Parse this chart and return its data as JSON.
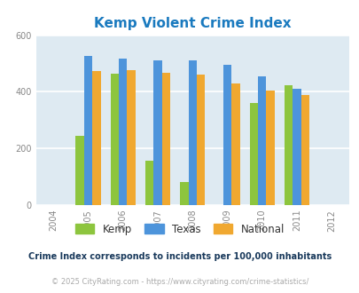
{
  "title": "Kemp Violent Crime Index",
  "title_color": "#1a7abf",
  "years": [
    2005,
    2006,
    2007,
    2008,
    2009,
    2010,
    2011
  ],
  "kemp": [
    243,
    465,
    158,
    83,
    0,
    362,
    423
  ],
  "texas": [
    528,
    518,
    510,
    510,
    495,
    456,
    410
  ],
  "national": [
    474,
    476,
    468,
    460,
    430,
    405,
    388
  ],
  "kemp_color": "#8dc53e",
  "texas_color": "#4d94db",
  "national_color": "#f0a830",
  "bg_color": "#deeaf2",
  "ylim": [
    0,
    600
  ],
  "yticks": [
    0,
    200,
    400,
    600
  ],
  "footnote1": "Crime Index corresponds to incidents per 100,000 inhabitants",
  "footnote2": "© 2025 CityRating.com - https://www.cityrating.com/crime-statistics/",
  "footnote1_color": "#1a3a5c",
  "footnote2_color": "#aaaaaa",
  "xmin": 2004,
  "xmax": 2012,
  "bar_width": 0.24
}
